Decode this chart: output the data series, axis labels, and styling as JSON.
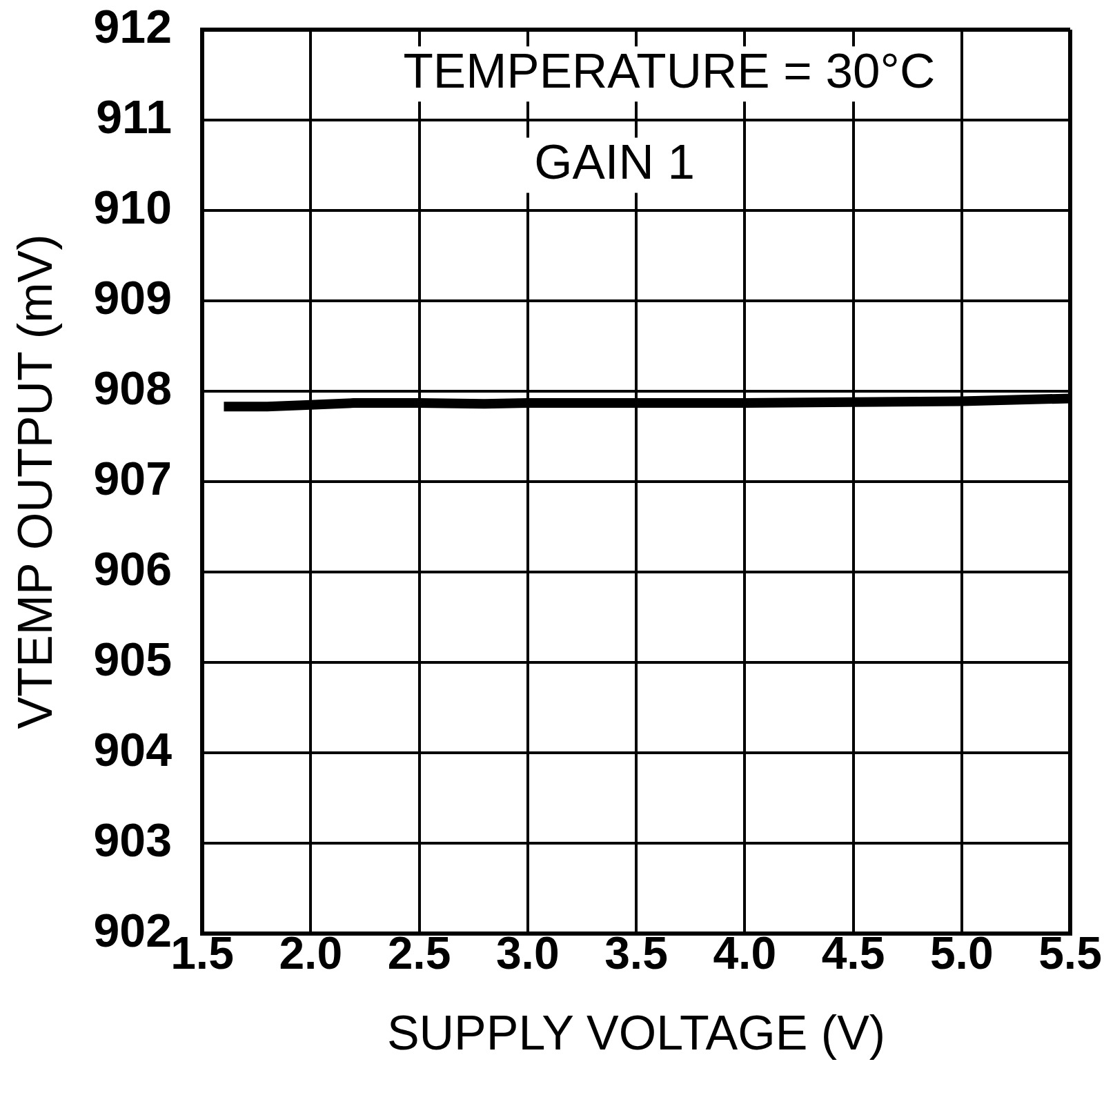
{
  "chart_data": {
    "type": "line",
    "xlabel": "SUPPLY VOLTAGE (V)",
    "ylabel": "VTEMP OUTPUT (mV)",
    "annotations": [
      "TEMPERATURE = 30°C",
      "GAIN 1"
    ],
    "x": [
      1.6,
      1.8,
      2.0,
      2.2,
      2.5,
      2.8,
      3.0,
      3.5,
      4.0,
      4.5,
      5.0,
      5.5
    ],
    "series": [
      {
        "color": "#000000",
        "values": [
          907.83,
          907.83,
          907.85,
          907.87,
          907.87,
          907.86,
          907.87,
          907.87,
          907.87,
          907.88,
          907.89,
          907.92
        ]
      }
    ],
    "xlim": [
      1.5,
      5.5
    ],
    "xticks": [
      1.5,
      {
        "value": 2,
        "label": "2.0"
      },
      2.5,
      {
        "value": 3,
        "label": "3.0"
      },
      3.5,
      {
        "value": 4,
        "label": "4.0"
      },
      4.5,
      {
        "value": 5,
        "label": "5.0"
      },
      5.5
    ],
    "ylim": [
      902,
      912
    ],
    "yticks": [
      902,
      903,
      904,
      905,
      906,
      907,
      908,
      909,
      910,
      911,
      912
    ],
    "grid": true,
    "marker": "none",
    "line_style": "solid"
  }
}
